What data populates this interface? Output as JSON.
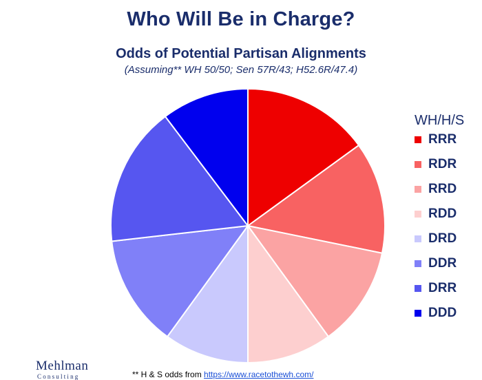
{
  "title": "Who Will Be in Charge?",
  "subtitle": "Odds of Potential Partisan Alignments",
  "subnote": "(Assuming** WH 50/50; Sen 57R/43; H52.6R/47.4)",
  "logo": {
    "main": "Mehlman",
    "sub": "Consulting"
  },
  "footnote": {
    "text": "** H & S odds from ",
    "link": "https://www.racetothewh.com/"
  },
  "chart_data": {
    "type": "pie",
    "title": "Odds of Potential Partisan Alignments",
    "legend_title": "WH/H/S",
    "legend_position": "right",
    "slices": [
      {
        "label": "RRR",
        "value": 15.0,
        "color": "#ee0000"
      },
      {
        "label": "RDR",
        "value": 13.2,
        "color": "#f86262"
      },
      {
        "label": "RRD",
        "value": 11.8,
        "color": "#fba3a3"
      },
      {
        "label": "RDD",
        "value": 10.0,
        "color": "#fdcfcf"
      },
      {
        "label": "DRD",
        "value": 10.0,
        "color": "#c9c9fd"
      },
      {
        "label": "DDR",
        "value": 13.2,
        "color": "#8080f8"
      },
      {
        "label": "DRR",
        "value": 16.5,
        "color": "#5656f0"
      },
      {
        "label": "DDD",
        "value": 10.3,
        "color": "#0000ee"
      }
    ]
  }
}
